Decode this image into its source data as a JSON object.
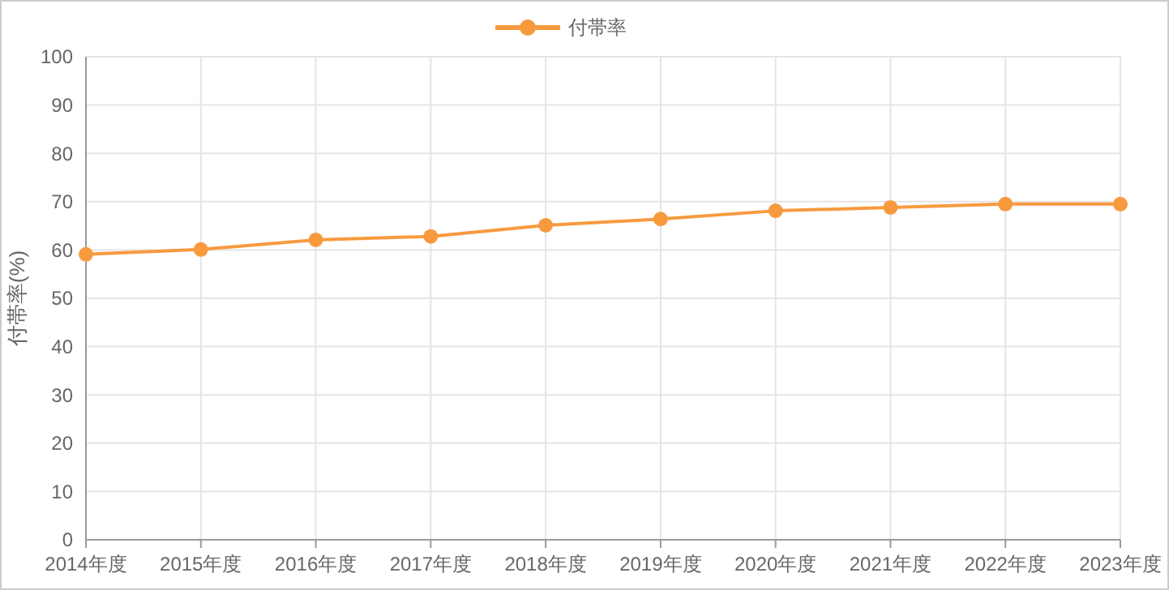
{
  "chart_data": {
    "type": "line",
    "ylabel": "付帯率(%)",
    "categories": [
      "2014年度",
      "2015年度",
      "2016年度",
      "2017年度",
      "2018年度",
      "2019年度",
      "2020年度",
      "2021年度",
      "2022年度",
      "2023年度"
    ],
    "series": [
      {
        "name": "付帯率",
        "color": "#f79a3e",
        "values": [
          59.1,
          60.1,
          62.1,
          62.8,
          65.1,
          66.4,
          68.1,
          68.8,
          69.5,
          69.5
        ]
      }
    ],
    "ylim": [
      0,
      100
    ],
    "yticks": [
      0,
      10,
      20,
      30,
      40,
      50,
      60,
      70,
      80,
      90,
      100
    ],
    "grid": true,
    "legend": "top",
    "marker": "circle",
    "line_style": "solid"
  }
}
